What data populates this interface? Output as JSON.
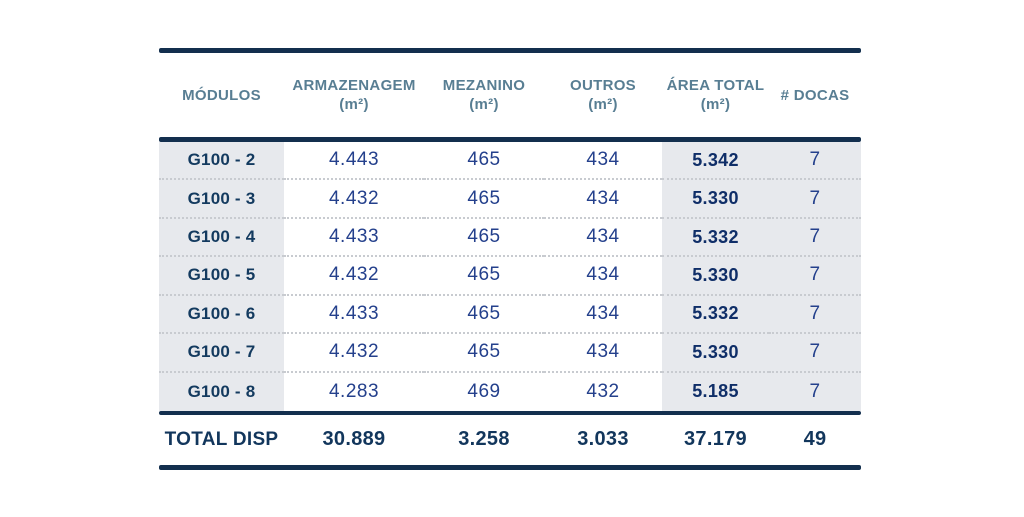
{
  "colors": {
    "rule_navy": "#132f4e",
    "header_text": "#587e93",
    "value_text": "#24408c",
    "module_text": "#133a5f",
    "area_total_text": "#0f2e68",
    "total_text": "#12365c",
    "shade_bg": "#e7e9ed",
    "card_bg": "#ffffff",
    "dotted_separator": "#c8cbd0"
  },
  "chart_data": {
    "type": "table",
    "columns": [
      {
        "label": "MÓDULOS",
        "unit": ""
      },
      {
        "label": "ARMAZENAGEM",
        "unit": "(m²)"
      },
      {
        "label": "MEZANINO",
        "unit": "(m²)"
      },
      {
        "label": "OUTROS",
        "unit": "(m²)"
      },
      {
        "label": "ÁREA TOTAL",
        "unit": "(m²)"
      },
      {
        "label": "# DOCAS",
        "unit": ""
      }
    ],
    "rows": [
      [
        "G100 - 2",
        "4.443",
        "465",
        "434",
        "5.342",
        "7"
      ],
      [
        "G100 - 3",
        "4.432",
        "465",
        "434",
        "5.330",
        "7"
      ],
      [
        "G100 - 4",
        "4.433",
        "465",
        "434",
        "5.332",
        "7"
      ],
      [
        "G100 - 5",
        "4.432",
        "465",
        "434",
        "5.330",
        "7"
      ],
      [
        "G100 - 6",
        "4.433",
        "465",
        "434",
        "5.332",
        "7"
      ],
      [
        "G100 - 7",
        "4.432",
        "465",
        "434",
        "5.330",
        "7"
      ],
      [
        "G100 - 8",
        "4.283",
        "469",
        "432",
        "5.185",
        "7"
      ]
    ],
    "total": [
      "TOTAL DISP",
      "30.889",
      "3.258",
      "3.033",
      "37.179",
      "49"
    ]
  }
}
